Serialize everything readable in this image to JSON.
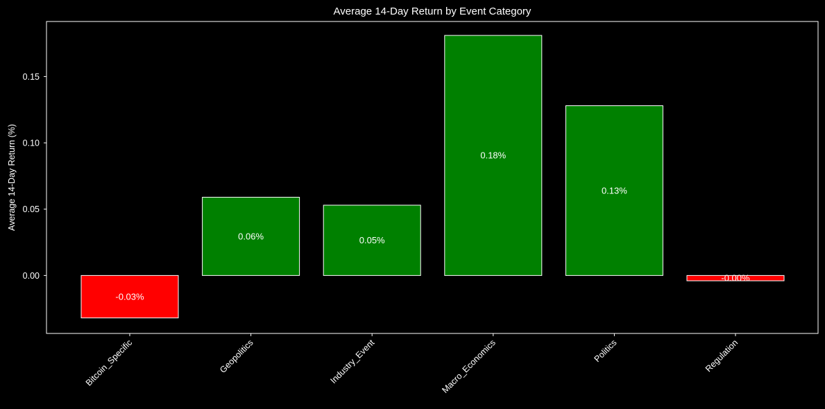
{
  "chart_data": {
    "type": "bar",
    "title": "Average 14-Day Return by Event Category",
    "xlabel": "",
    "ylabel": "Average 14-Day Return (%)",
    "categories": [
      "Bitcoin_Specific",
      "Geopolitics",
      "Industry_Event",
      "Macro_Economics",
      "Politics",
      "Regulation"
    ],
    "values": [
      -0.032,
      0.059,
      0.053,
      0.181,
      0.128,
      -0.004
    ],
    "data_labels": [
      "-0.03%",
      "0.06%",
      "0.05%",
      "0.18%",
      "0.13%",
      "-0.00%"
    ],
    "yticks": [
      0.0,
      0.05,
      0.1,
      0.15
    ],
    "ytick_labels": [
      "0.00",
      "0.05",
      "0.10",
      "0.15"
    ],
    "ylim": [
      -0.0437,
      0.1915
    ],
    "grid": false,
    "colors": {
      "positive": "#008000",
      "negative": "#ff0000",
      "edge": "#ffffff",
      "background": "#000000",
      "text": "#ffffff"
    }
  }
}
